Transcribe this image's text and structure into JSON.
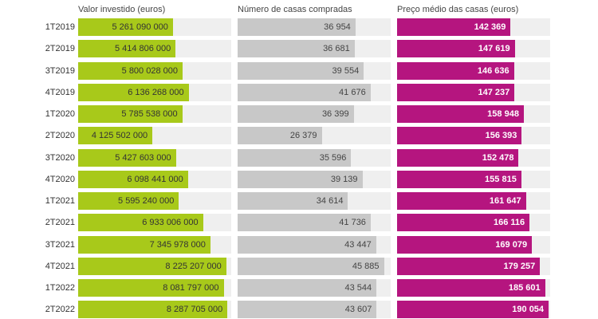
{
  "chart_data": {
    "type": "bar",
    "orientation": "horizontal",
    "categories": [
      "1T2019",
      "2T2019",
      "3T2019",
      "4T2019",
      "1T2020",
      "2T2020",
      "3T2020",
      "4T2020",
      "1T2021",
      "2T2021",
      "3T2021",
      "4T2021",
      "1T2022",
      "2T2022"
    ],
    "series": [
      {
        "name": "Valor investido (euros)",
        "color": "#a8c91a",
        "text_color": "#333333",
        "values": [
          5261090000,
          5414806000,
          5800028000,
          6136268000,
          5785538000,
          4125502000,
          5427603000,
          6098441000,
          5595240000,
          6933006000,
          7345978000,
          8225207000,
          8081797000,
          8287705000
        ],
        "labels": [
          "5 261 090 000",
          "5 414 806 000",
          "5 800 028 000",
          "6 136 268 000",
          "5 785 538 000",
          "4 125 502 000",
          "5 427 603 000",
          "6 098 441 000",
          "5 595 240 000",
          "6 933 006 000",
          "7 345 978 000",
          "8 225 207 000",
          "8 081 797 000",
          "8 287 705 000"
        ],
        "xlim": [
          0,
          8500000000
        ]
      },
      {
        "name": "Número de casas compradas",
        "color": "#c8c8c8",
        "text_color": "#444444",
        "values": [
          36954,
          36681,
          39554,
          41676,
          36399,
          26379,
          35596,
          39139,
          34614,
          41736,
          43447,
          45885,
          43544,
          43607
        ],
        "labels": [
          "36 954",
          "36 681",
          "39 554",
          "41 676",
          "36 399",
          "26 379",
          "35 596",
          "39 139",
          "34 614",
          "41 736",
          "43 447",
          "45 885",
          "43 544",
          "43 607"
        ],
        "xlim": [
          0,
          48000
        ]
      },
      {
        "name": "Preço médio das casas (euros)",
        "color": "#b5157f",
        "text_color": "#ffffff",
        "values": [
          142369,
          147619,
          146636,
          147237,
          158948,
          156393,
          152478,
          155815,
          161647,
          166116,
          169079,
          179257,
          185601,
          190054
        ],
        "labels": [
          "142 369",
          "147 619",
          "146 636",
          "147 237",
          "158 948",
          "156 393",
          "152 478",
          "155 815",
          "161 647",
          "166 116",
          "169 079",
          "179 257",
          "185 601",
          "190 054"
        ],
        "xlim": [
          0,
          192000
        ]
      }
    ],
    "value_labels_position": "inside-end"
  }
}
